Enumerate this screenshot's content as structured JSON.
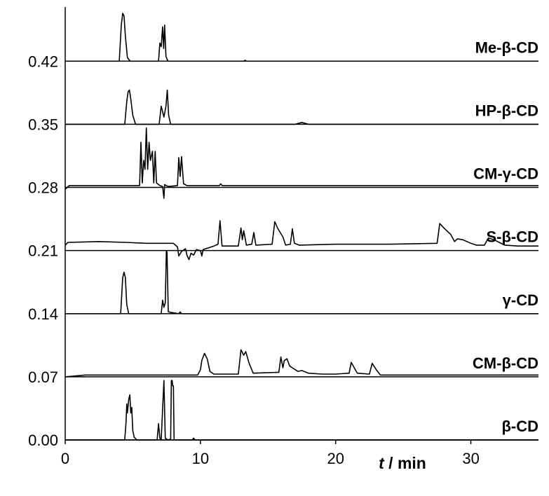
{
  "chart_data": {
    "type": "line",
    "xlabel": "t / min",
    "xlabel_var": "t",
    "xlabel_unit": " / min",
    "xlim": [
      0,
      35
    ],
    "ylim": [
      0,
      0.48
    ],
    "x_ticks": [
      0,
      10,
      20,
      30
    ],
    "y_ticks": [
      "0.00",
      "0.07",
      "0.14",
      "0.21",
      "0.28",
      "0.35",
      "0.42"
    ],
    "grid": false,
    "legend": "inline labels at right",
    "series": [
      {
        "name": "Me-β-CD",
        "offset": 0.42,
        "points": [
          [
            0,
            0
          ],
          [
            4.0,
            0
          ],
          [
            4.15,
            0.04
          ],
          [
            4.25,
            0.053
          ],
          [
            4.35,
            0.05
          ],
          [
            4.45,
            0.028
          ],
          [
            4.6,
            0.004
          ],
          [
            4.8,
            0
          ],
          [
            6.9,
            0
          ],
          [
            7.0,
            0.02
          ],
          [
            7.1,
            0.016
          ],
          [
            7.2,
            0.038
          ],
          [
            7.28,
            0.014
          ],
          [
            7.35,
            0.04
          ],
          [
            7.45,
            0.005
          ],
          [
            7.6,
            0
          ],
          [
            13.2,
            0
          ],
          [
            13.3,
            0.001
          ],
          [
            13.4,
            0
          ],
          [
            35,
            0
          ]
        ]
      },
      {
        "name": "HP-β-CD",
        "offset": 0.35,
        "points": [
          [
            0,
            0
          ],
          [
            4.4,
            0
          ],
          [
            4.55,
            0.025
          ],
          [
            4.65,
            0.036
          ],
          [
            4.75,
            0.038
          ],
          [
            4.85,
            0.028
          ],
          [
            5.0,
            0.01
          ],
          [
            5.2,
            0
          ],
          [
            6.95,
            0
          ],
          [
            7.1,
            0.02
          ],
          [
            7.2,
            0.014
          ],
          [
            7.3,
            0.008
          ],
          [
            7.45,
            0.02
          ],
          [
            7.55,
            0.038
          ],
          [
            7.65,
            0.01
          ],
          [
            7.8,
            0
          ],
          [
            17.0,
            0
          ],
          [
            17.5,
            0.002
          ],
          [
            18.0,
            0
          ],
          [
            35,
            0
          ]
        ]
      },
      {
        "name": "CM-γ-CD",
        "offset": 0.28,
        "points": [
          [
            0,
            -0.002
          ],
          [
            0.3,
            0.002
          ],
          [
            3.0,
            0.002
          ],
          [
            5.5,
            0.002
          ],
          [
            5.6,
            0.05
          ],
          [
            5.7,
            0.005
          ],
          [
            5.8,
            0.03
          ],
          [
            5.9,
            0.02
          ],
          [
            6.0,
            0.066
          ],
          [
            6.1,
            0.02
          ],
          [
            6.2,
            0.05
          ],
          [
            6.3,
            0.03
          ],
          [
            6.45,
            0.04
          ],
          [
            6.55,
            0.005
          ],
          [
            6.65,
            0.04
          ],
          [
            6.75,
            0.005
          ],
          [
            7.0,
            0.002
          ],
          [
            7.2,
            0.001
          ],
          [
            7.3,
            -0.012
          ],
          [
            7.35,
            0.003
          ],
          [
            7.6,
            0.001
          ],
          [
            8.3,
            0.002
          ],
          [
            8.4,
            0.033
          ],
          [
            8.5,
            0.012
          ],
          [
            8.6,
            0.034
          ],
          [
            8.75,
            0.004
          ],
          [
            9.0,
            0.002
          ],
          [
            11.4,
            0.002
          ],
          [
            11.5,
            0.004
          ],
          [
            11.6,
            0.002
          ],
          [
            35,
            0.002
          ]
        ]
      },
      {
        "name": "S-β-CD",
        "offset": 0.21,
        "points": [
          [
            0,
            0.006
          ],
          [
            0.2,
            0.009
          ],
          [
            2.5,
            0.01
          ],
          [
            4.5,
            0.009
          ],
          [
            6.0,
            0.008
          ],
          [
            8.0,
            0.008
          ],
          [
            8.3,
            0.004
          ],
          [
            8.4,
            -0.006
          ],
          [
            8.6,
            -0.001
          ],
          [
            8.9,
            0.002
          ],
          [
            9.0,
            -0.005
          ],
          [
            9.15,
            -0.01
          ],
          [
            9.3,
            -0.003
          ],
          [
            9.5,
            -0.005
          ],
          [
            9.7,
            0.001
          ],
          [
            10.0,
            0.0
          ],
          [
            10.1,
            -0.006
          ],
          [
            10.2,
            0.001
          ],
          [
            11.0,
            0.005
          ],
          [
            11.3,
            0.007
          ],
          [
            11.45,
            0.033
          ],
          [
            11.6,
            0.005
          ],
          [
            12.8,
            0.005
          ],
          [
            13.0,
            0.025
          ],
          [
            13.1,
            0.012
          ],
          [
            13.2,
            0.022
          ],
          [
            13.4,
            0.006
          ],
          [
            13.8,
            0.007
          ],
          [
            13.95,
            0.02
          ],
          [
            14.1,
            0.006
          ],
          [
            15.3,
            0.007
          ],
          [
            15.5,
            0.032
          ],
          [
            15.7,
            0.025
          ],
          [
            15.9,
            0.02
          ],
          [
            16.1,
            0.015
          ],
          [
            16.3,
            0.006
          ],
          [
            16.65,
            0.007
          ],
          [
            16.8,
            0.024
          ],
          [
            16.95,
            0.008
          ],
          [
            17.3,
            0.006
          ],
          [
            20.0,
            0.007
          ],
          [
            24.0,
            0.007
          ],
          [
            27.5,
            0.008
          ],
          [
            27.7,
            0.03
          ],
          [
            28.0,
            0.025
          ],
          [
            28.5,
            0.018
          ],
          [
            28.8,
            0.01
          ],
          [
            29.0,
            0.013
          ],
          [
            29.4,
            0.012
          ],
          [
            30.0,
            0.008
          ],
          [
            30.4,
            0.006
          ],
          [
            31.0,
            0.006
          ],
          [
            31.3,
            0.014
          ],
          [
            31.7,
            0.012
          ],
          [
            32.5,
            0.006
          ],
          [
            33.5,
            0.005
          ],
          [
            35,
            0.005
          ]
        ]
      },
      {
        "name": "γ-CD",
        "offset": 0.14,
        "points": [
          [
            0,
            0
          ],
          [
            4.1,
            0
          ],
          [
            4.25,
            0.04
          ],
          [
            4.35,
            0.046
          ],
          [
            4.45,
            0.04
          ],
          [
            4.55,
            0.01
          ],
          [
            4.7,
            0
          ],
          [
            7.1,
            0
          ],
          [
            7.2,
            0.015
          ],
          [
            7.3,
            0.007
          ],
          [
            7.4,
            0.012
          ],
          [
            7.48,
            0.07
          ],
          [
            7.53,
            0.068
          ],
          [
            7.62,
            0.002
          ],
          [
            8.4,
            0
          ],
          [
            8.5,
            0.002
          ],
          [
            8.6,
            0
          ],
          [
            35,
            0
          ]
        ]
      },
      {
        "name": "CM-β-CD",
        "offset": 0.07,
        "points": [
          [
            0,
            0
          ],
          [
            1.5,
            0.002
          ],
          [
            8.0,
            0.002
          ],
          [
            9.8,
            0.002
          ],
          [
            10.0,
            0.008
          ],
          [
            10.1,
            0.018
          ],
          [
            10.3,
            0.026
          ],
          [
            10.5,
            0.02
          ],
          [
            10.7,
            0.006
          ],
          [
            11.0,
            0.003
          ],
          [
            12.8,
            0.003
          ],
          [
            13.0,
            0.03
          ],
          [
            13.2,
            0.024
          ],
          [
            13.35,
            0.028
          ],
          [
            13.6,
            0.015
          ],
          [
            13.9,
            0.004
          ],
          [
            15.8,
            0.005
          ],
          [
            15.95,
            0.022
          ],
          [
            16.1,
            0.01
          ],
          [
            16.2,
            0.018
          ],
          [
            16.4,
            0.02
          ],
          [
            16.6,
            0.012
          ],
          [
            16.8,
            0.01
          ],
          [
            17.2,
            0.006
          ],
          [
            17.5,
            0.007
          ],
          [
            18.0,
            0.004
          ],
          [
            19.0,
            0.003
          ],
          [
            20.0,
            0.003
          ],
          [
            21.0,
            0.004
          ],
          [
            21.15,
            0.016
          ],
          [
            21.3,
            0.012
          ],
          [
            21.6,
            0.004
          ],
          [
            22.5,
            0.003
          ],
          [
            22.7,
            0.015
          ],
          [
            23.0,
            0.008
          ],
          [
            23.3,
            0.002
          ],
          [
            35,
            0.002
          ]
        ]
      },
      {
        "name": "β-CD",
        "offset": 0.0,
        "points": [
          [
            0,
            0
          ],
          [
            4.4,
            0
          ],
          [
            4.5,
            0.02
          ],
          [
            4.55,
            0.04
          ],
          [
            4.6,
            0.03
          ],
          [
            4.7,
            0.045
          ],
          [
            4.78,
            0.05
          ],
          [
            4.85,
            0.03
          ],
          [
            4.92,
            0.036
          ],
          [
            5.0,
            0.01
          ],
          [
            5.1,
            0.003
          ],
          [
            5.3,
            0
          ],
          [
            6.8,
            0
          ],
          [
            6.9,
            0.018
          ],
          [
            7.0,
            0.002
          ],
          [
            7.1,
            0
          ],
          [
            7.3,
            0.066
          ],
          [
            7.4,
            0.002
          ],
          [
            7.6,
            0
          ],
          [
            7.8,
            0.001
          ],
          [
            7.85,
            0.066
          ],
          [
            7.9,
            0.066
          ],
          [
            7.95,
            0.06
          ],
          [
            8.0,
            0.06
          ],
          [
            8.05,
            0.0
          ],
          [
            9.4,
            0
          ],
          [
            9.5,
            0.002
          ],
          [
            9.6,
            0
          ],
          [
            35,
            0
          ]
        ]
      }
    ]
  }
}
